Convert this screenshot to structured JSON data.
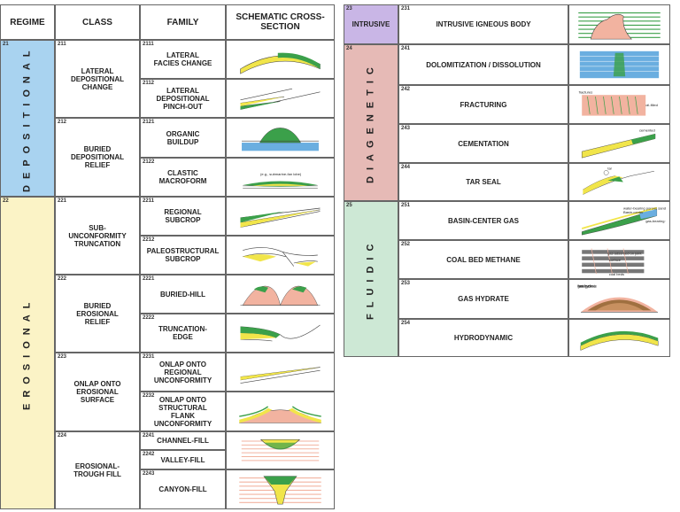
{
  "left_table": {
    "headers": [
      "REGIME",
      "CLASS",
      "FAMILY",
      "SCHEMATIC CROSS-SECTION"
    ],
    "regimes": [
      {
        "code": "21",
        "name": "DEPOSITIONAL",
        "color": "#a9d3f0",
        "classes": [
          {
            "code": "211",
            "name": "LATERAL DEPOSITIONAL CHANGE",
            "families": [
              {
                "code": "2111",
                "name": "LATERAL FACIES CHANGE"
              },
              {
                "code": "2112",
                "name": "LATERAL DEPOSITIONAL PINCH-OUT"
              }
            ]
          },
          {
            "code": "212",
            "name": "BURIED DEPOSITIONAL RELIEF",
            "families": [
              {
                "code": "2121",
                "name": "ORGANIC BUILDUP"
              },
              {
                "code": "2122",
                "name": "CLASTIC MACROFORM",
                "notes": [
                  "(e.g., submarine-fan lobe)"
                ]
              }
            ]
          }
        ]
      },
      {
        "code": "22",
        "name": "EROSIONAL",
        "color": "#fbf3c6",
        "classes": [
          {
            "code": "221",
            "name": "SUB-UNCONFORMITY TRUNCATION",
            "families": [
              {
                "code": "2211",
                "name": "REGIONAL SUBCROP"
              },
              {
                "code": "2212",
                "name": "PALEOSTRUCTURAL SUBCROP"
              }
            ]
          },
          {
            "code": "222",
            "name": "BURIED EROSIONAL RELIEF",
            "families": [
              {
                "code": "2221",
                "name": "BURIED-HILL"
              },
              {
                "code": "2222",
                "name": "TRUNCATION-EDGE"
              }
            ]
          },
          {
            "code": "223",
            "name": "ONLAP ONTO EROSIONAL SURFACE",
            "families": [
              {
                "code": "2231",
                "name": "ONLAP ONTO REGIONAL UNCONFORMITY"
              },
              {
                "code": "2232",
                "name": "ONLAP ONTO STRUCTURAL FLANK UNCONFORMITY"
              }
            ]
          },
          {
            "code": "224",
            "name": "EROSIONAL-TROUGH FILL",
            "families": [
              {
                "code": "2241",
                "name": "CHANNEL-FILL"
              },
              {
                "code": "2242",
                "name": "VALLEY-FILL"
              },
              {
                "code": "2243",
                "name": "CANYON-FILL"
              }
            ]
          }
        ]
      }
    ]
  },
  "right_table": {
    "regimes": [
      {
        "code": "23",
        "name": "INTRUSIVE",
        "color": "#c9b6e6",
        "classes": [
          {
            "code": "231",
            "name": "INTRUSIVE IGNEOUS BODY"
          }
        ]
      },
      {
        "code": "24",
        "name": "DIAGENETIC",
        "color": "#e6bab6",
        "classes": [
          {
            "code": "241",
            "name": "DOLOMITIZATION / DISSOLUTION"
          },
          {
            "code": "242",
            "name": "FRACTURING",
            "notes": [
              "oil-filled",
              "fractures"
            ]
          },
          {
            "code": "243",
            "name": "CEMENTATION",
            "notes": [
              "cemented"
            ]
          },
          {
            "code": "244",
            "name": "TAR SEAL",
            "notes": [
              "tar"
            ]
          }
        ]
      },
      {
        "code": "25",
        "name": "FLUIDIC",
        "color": "#cde8d5",
        "classes": [
          {
            "code": "251",
            "name": "BASIN-CENTER GAS",
            "notes": [
              "water-bearing porous sand",
              "Basin-center",
              "gas-bearing tight sand"
            ]
          },
          {
            "code": "252",
            "name": "COAL BED METHANE",
            "notes": [
              "gas adsorbed on joint",
              "surface",
              "coal beds"
            ]
          },
          {
            "code": "253",
            "name": "GAS HYDRATE",
            "notes": [
              "gas hydrate",
              "free gas",
              "water zone"
            ]
          },
          {
            "code": "254",
            "name": "HYDRODYNAMIC"
          }
        ]
      }
    ]
  }
}
